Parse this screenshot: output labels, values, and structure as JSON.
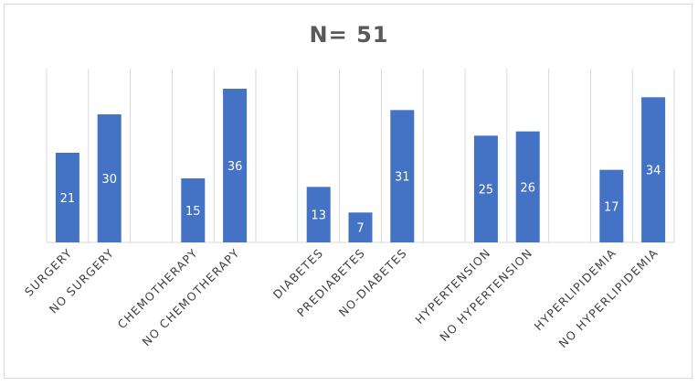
{
  "chart_data": {
    "type": "bar",
    "title": "N= 51",
    "categories": [
      "SURGERY",
      "NO SURGERY",
      "",
      "CHEMOTHERAPY",
      "NO CHEMOTHERAPY",
      "",
      "DIABETES",
      "PREDIABETES",
      "NO-DIABETES",
      "",
      "HYPERTENSION",
      "NO HYPERTENSION",
      "",
      "HYPERLIPIDEMIA",
      "NO HYPERLIPIDEMIA"
    ],
    "values": [
      21,
      30,
      null,
      15,
      36,
      null,
      13,
      7,
      31,
      null,
      25,
      26,
      null,
      17,
      34
    ],
    "ylim": [
      0,
      40
    ],
    "grid": "vertical category separators",
    "legend": "none",
    "colors": {
      "bar": "#4472c4",
      "grid": "#d9d9d9",
      "axis": "#d9d9d9",
      "label": "#404040",
      "title": "#595959"
    }
  }
}
